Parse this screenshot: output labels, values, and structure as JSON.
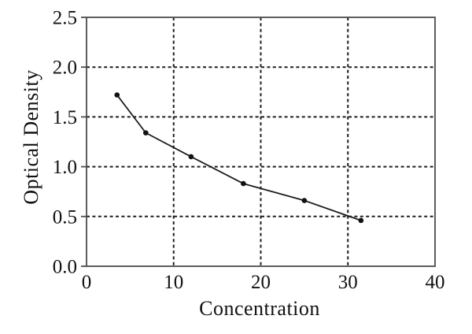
{
  "chart_data": {
    "type": "line",
    "title": "",
    "xlabel": "Concentration",
    "ylabel": "Optical Density",
    "x": [
      3.5,
      6.8,
      12,
      18,
      25,
      31.5
    ],
    "y": [
      1.72,
      1.34,
      1.1,
      0.83,
      0.66,
      0.46
    ],
    "xlim": [
      0,
      40
    ],
    "ylim": [
      0,
      2.5
    ],
    "xticks": [
      0,
      10,
      20,
      30,
      40
    ],
    "xtick_labels": [
      "0",
      "10",
      "20",
      "30",
      "40"
    ],
    "yticks": [
      0,
      0.5,
      1.0,
      1.5,
      2.0,
      2.5
    ],
    "ytick_labels": [
      "0.0",
      "0.5",
      "1.0",
      "1.5",
      "2.0",
      "2.5"
    ],
    "xgrid": [
      10,
      20,
      30
    ],
    "ygrid": [
      0.5,
      1.0,
      1.5,
      2.0
    ],
    "grid_style": "dashed",
    "legend": null,
    "marker": "filled-circle",
    "colors": {
      "background": "#ffffff",
      "line": "#1c1c1c",
      "marker": "#111111",
      "grid": "#1f1f1f",
      "border": "#4d4d4d",
      "text": "#111111"
    }
  }
}
